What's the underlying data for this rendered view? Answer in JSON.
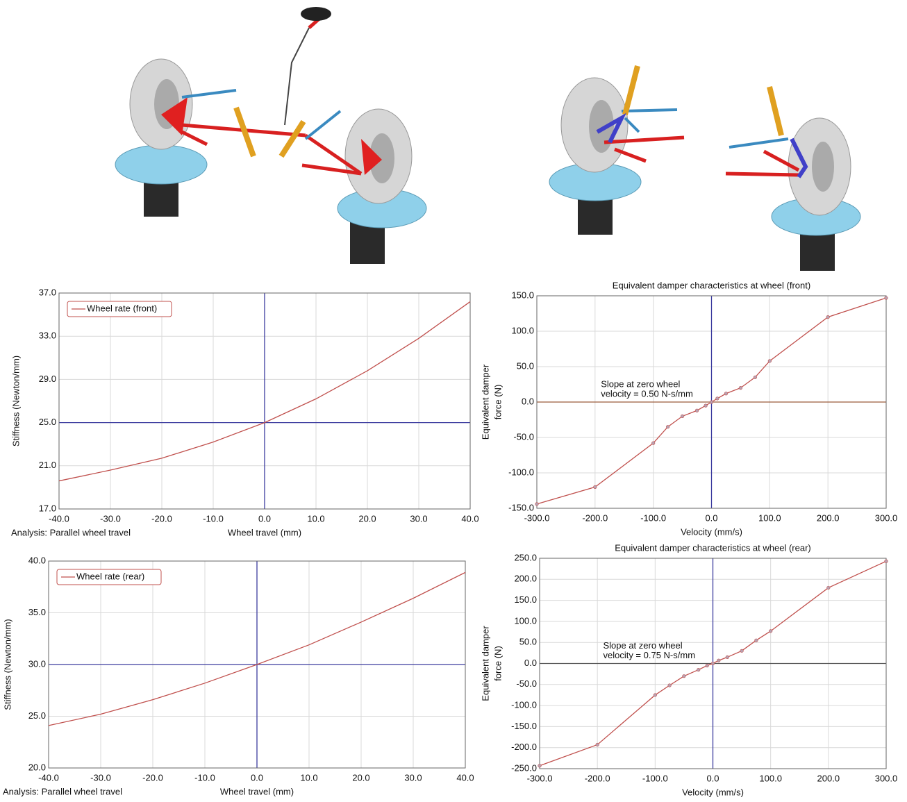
{
  "chart_data": [
    {
      "type": "line",
      "ylabel": "Stiffness (Newton/mm)",
      "xlabel": "Wheel travel (mm)",
      "annotation": "Analysis: Parallel wheel travel",
      "x": [
        -40,
        -30,
        -20,
        -10,
        0,
        10,
        20,
        30,
        40
      ],
      "series": [
        {
          "name": "Wheel rate (front)",
          "color": "#c0504d",
          "values": [
            19.6,
            20.6,
            21.7,
            23.2,
            25.0,
            27.2,
            29.8,
            32.8,
            36.2
          ]
        }
      ],
      "xlim": [
        -40,
        40
      ],
      "ylim": [
        17,
        37
      ],
      "xticks": [
        {
          "value": -40,
          "label": "-40.0"
        },
        {
          "value": -30,
          "label": "-30.0"
        },
        {
          "value": -20,
          "label": "-20.0"
        },
        {
          "value": -10,
          "label": "-10.0"
        },
        {
          "value": 0,
          "label": "0.0"
        },
        {
          "value": 10,
          "label": "10.0"
        },
        {
          "value": 20,
          "label": "20.0"
        },
        {
          "value": 30,
          "label": "30.0"
        },
        {
          "value": 40,
          "label": "40.0"
        }
      ],
      "yticks": [
        {
          "value": 17,
          "label": "17.0"
        },
        {
          "value": 21,
          "label": "21.0"
        },
        {
          "value": 25,
          "label": "25.0"
        },
        {
          "value": 29,
          "label": "29.0"
        },
        {
          "value": 33,
          "label": "33.0"
        },
        {
          "value": 37,
          "label": "37.0"
        }
      ],
      "reference_x": 0,
      "reference_y": 25,
      "reference_color": "#3b3b9e",
      "grid": true,
      "legend": "upper left"
    },
    {
      "type": "line",
      "title": "Equivalent damper characteristics at wheel (front)",
      "ylabel": [
        "Equivalent damper",
        "force (N)"
      ],
      "xlabel": "Velocity (mm/s)",
      "annotation": [
        "Slope at zero wheel",
        "velocity = 0.50 N-s/mm"
      ],
      "x": [
        -300,
        -200,
        -100,
        -75,
        -50,
        -25,
        -10,
        0,
        10,
        25,
        50,
        75,
        100,
        200,
        300
      ],
      "values": [
        -144,
        -120,
        -58,
        -35,
        -20,
        -12,
        -5,
        0,
        5,
        12,
        20,
        35,
        58,
        120,
        147
      ],
      "color": "#c0504d",
      "markers": true,
      "xlim": [
        -300,
        300
      ],
      "ylim": [
        -150,
        150
      ],
      "xticks": [
        {
          "value": -300,
          "label": "-300.0"
        },
        {
          "value": -200,
          "label": "-200.0"
        },
        {
          "value": -100,
          "label": "-100.0"
        },
        {
          "value": 0,
          "label": "0.0"
        },
        {
          "value": 100,
          "label": "100.0"
        },
        {
          "value": 200,
          "label": "200.0"
        },
        {
          "value": 300,
          "label": "300.0"
        }
      ],
      "yticks": [
        {
          "value": -150,
          "label": "-150.0"
        },
        {
          "value": -100,
          "label": "-100.0"
        },
        {
          "value": -50,
          "label": "-50.0"
        },
        {
          "value": 0,
          "label": "0.0"
        },
        {
          "value": 50,
          "label": "50.0"
        },
        {
          "value": 100,
          "label": "100.0"
        },
        {
          "value": 150,
          "label": "150.0"
        }
      ],
      "reference_x": 0,
      "reference_y": 0,
      "reference_color": "#3b3b9e",
      "reference_y_color": "#9a5a3a",
      "grid": true
    },
    {
      "type": "line",
      "ylabel": "Stiffness (Newton/mm)",
      "xlabel": "Wheel travel (mm)",
      "annotation": "Analysis: Parallel wheel travel",
      "x": [
        -40,
        -30,
        -20,
        -10,
        0,
        10,
        20,
        30,
        40
      ],
      "series": [
        {
          "name": "Wheel rate (rear)",
          "color": "#c0504d",
          "values": [
            24.1,
            25.2,
            26.6,
            28.2,
            30.0,
            31.9,
            34.1,
            36.4,
            38.9
          ]
        }
      ],
      "xlim": [
        -40,
        40
      ],
      "ylim": [
        20,
        40
      ],
      "xticks": [
        {
          "value": -40,
          "label": "-40.0"
        },
        {
          "value": -30,
          "label": "-30.0"
        },
        {
          "value": -20,
          "label": "-20.0"
        },
        {
          "value": -10,
          "label": "-10.0"
        },
        {
          "value": 0,
          "label": "0.0"
        },
        {
          "value": 10,
          "label": "10.0"
        },
        {
          "value": 20,
          "label": "20.0"
        },
        {
          "value": 30,
          "label": "30.0"
        },
        {
          "value": 40,
          "label": "40.0"
        }
      ],
      "yticks": [
        {
          "value": 20,
          "label": "20.0"
        },
        {
          "value": 25,
          "label": "25.0"
        },
        {
          "value": 30,
          "label": "30.0"
        },
        {
          "value": 35,
          "label": "35.0"
        },
        {
          "value": 40,
          "label": "40.0"
        }
      ],
      "reference_x": 0,
      "reference_y": 30,
      "reference_color": "#3b3b9e",
      "grid": true,
      "legend": "upper left"
    },
    {
      "type": "line",
      "title": "Equivalent damper characteristics at wheel (rear)",
      "ylabel": [
        "Equivalent damper",
        "force (N)"
      ],
      "xlabel": "Velocity (mm/s)",
      "annotation": [
        "Slope at zero wheel",
        "velocity = 0.75 N-s/mm"
      ],
      "x": [
        -300,
        -200,
        -100,
        -75,
        -50,
        -25,
        -10,
        0,
        10,
        25,
        50,
        75,
        100,
        200,
        300
      ],
      "values": [
        -243,
        -193,
        -75,
        -52,
        -30,
        -15,
        -5,
        0,
        7,
        15,
        30,
        55,
        77,
        180,
        243
      ],
      "color": "#c0504d",
      "markers": true,
      "xlim": [
        -300,
        300
      ],
      "ylim": [
        -250,
        250
      ],
      "xticks": [
        {
          "value": -300,
          "label": "-300.0"
        },
        {
          "value": -200,
          "label": "-200.0"
        },
        {
          "value": -100,
          "label": "-100.0"
        },
        {
          "value": 0,
          "label": "0.0"
        },
        {
          "value": 100,
          "label": "100.0"
        },
        {
          "value": 200,
          "label": "200.0"
        },
        {
          "value": 300,
          "label": "300.0"
        }
      ],
      "yticks": [
        {
          "value": -250,
          "label": "-250.0"
        },
        {
          "value": -200,
          "label": "-200.0"
        },
        {
          "value": -150,
          "label": "-150.0"
        },
        {
          "value": -100,
          "label": "-100.0"
        },
        {
          "value": -50,
          "label": "-50.0"
        },
        {
          "value": 0,
          "label": "0.0"
        },
        {
          "value": 50,
          "label": "50.0"
        },
        {
          "value": 100,
          "label": "100.0"
        },
        {
          "value": 150,
          "label": "150.0"
        },
        {
          "value": 200,
          "label": "200.0"
        },
        {
          "value": 250,
          "label": "250.0"
        }
      ],
      "reference_x": 0,
      "reference_y": 0,
      "reference_color": "#3b3b9e",
      "reference_y_color": "#555555",
      "grid": true
    }
  ]
}
